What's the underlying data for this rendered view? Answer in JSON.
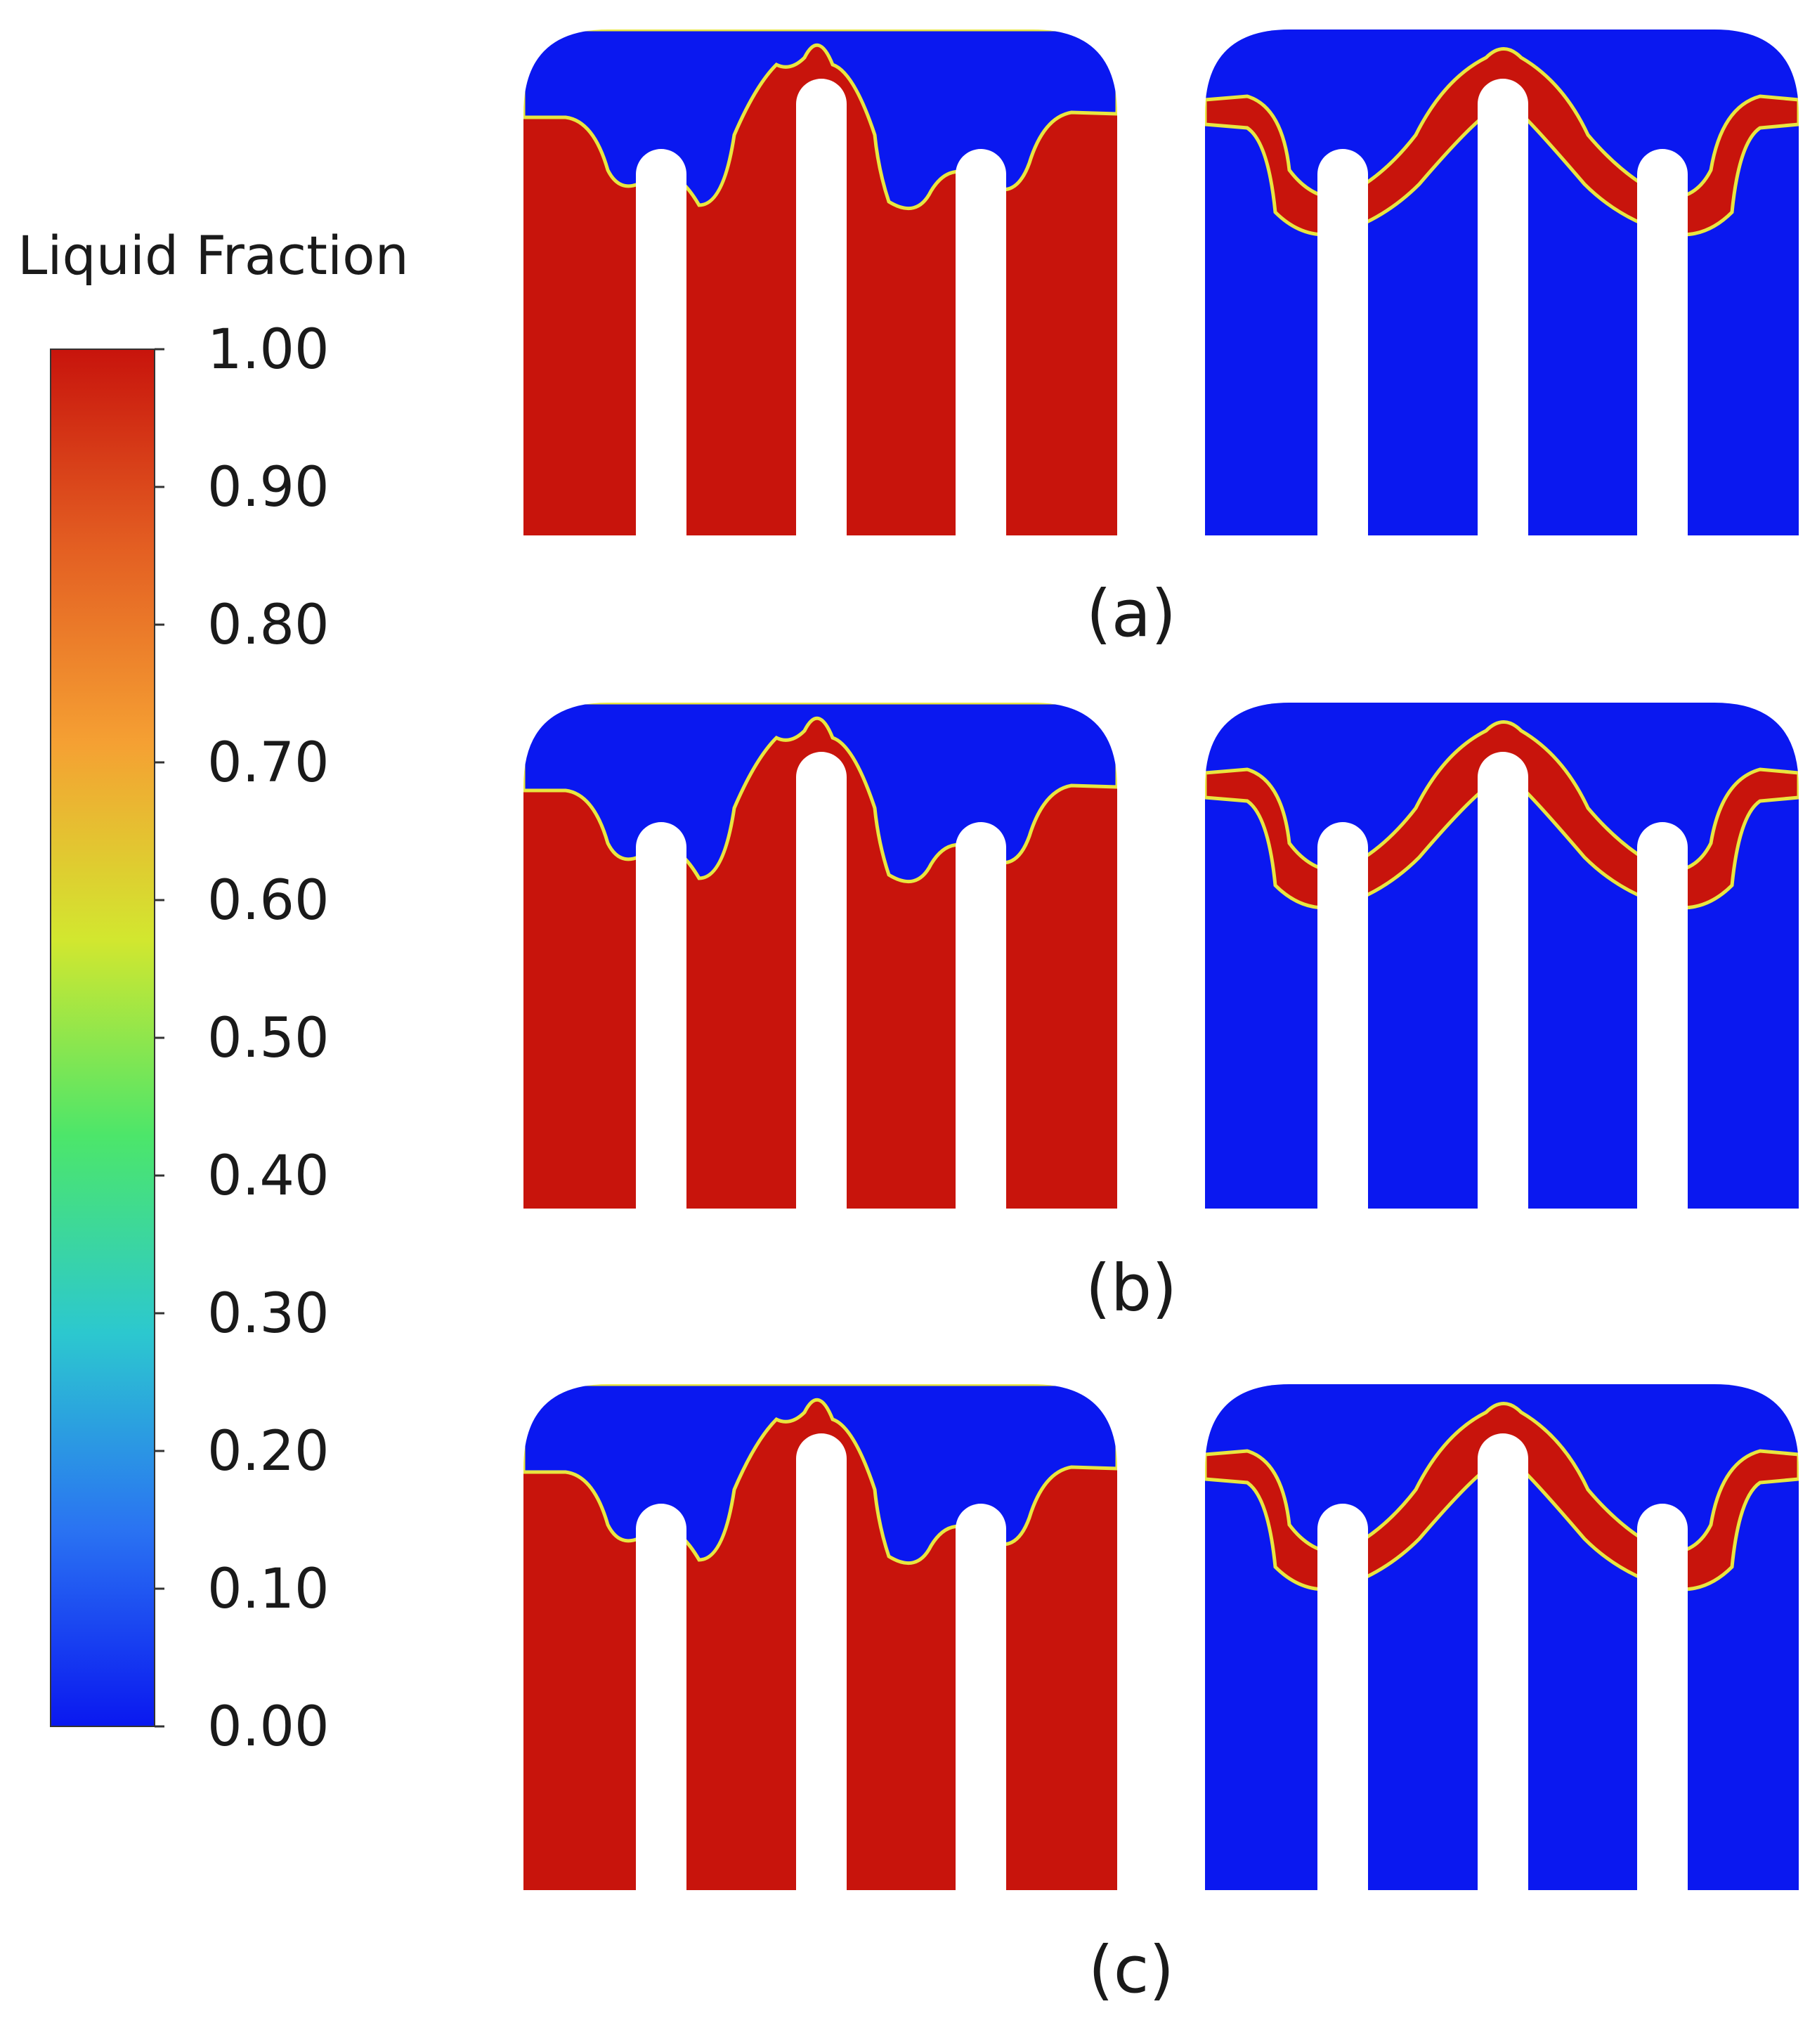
{
  "colorbar": {
    "title": "Liquid Fraction",
    "ticks": [
      "1.00",
      "0.90",
      "0.80",
      "0.70",
      "0.60",
      "0.50",
      "0.40",
      "0.30",
      "0.20",
      "0.10",
      "0.00"
    ],
    "colors": [
      "#0a18f0",
      "#2a73f2",
      "#2cc8cf",
      "#4ce66a",
      "#d2e72f",
      "#f5a033",
      "#e35e22",
      "#c8140c"
    ]
  },
  "panels": [
    {
      "id": "a",
      "label": "(a)"
    },
    {
      "id": "b",
      "label": "(b)"
    },
    {
      "id": "c",
      "label": "(c)"
    }
  ],
  "colors": {
    "liquid": "#c8140c",
    "solid": "#0a18f0",
    "interface": "#e8e640",
    "fin": "#ffffff"
  }
}
